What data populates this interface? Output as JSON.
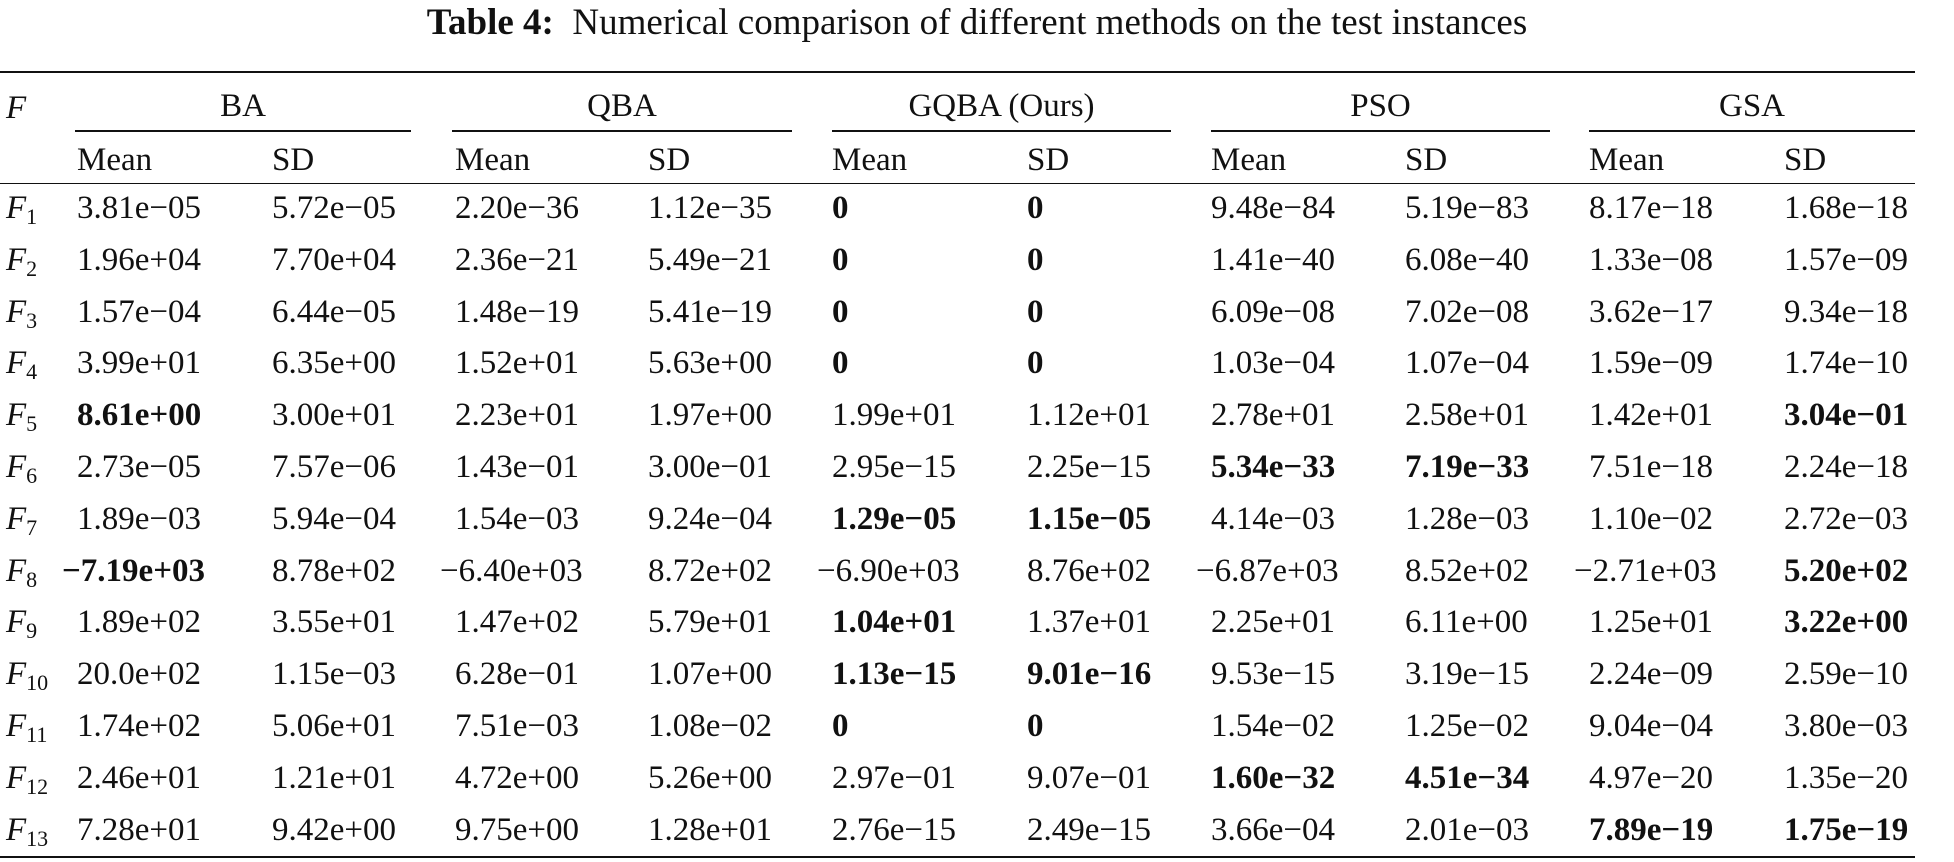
{
  "title": {
    "label": "Table 4:",
    "text": "Numerical comparison of different methods on the test instances"
  },
  "table": {
    "corner": "F",
    "groups": [
      "BA",
      "QBA",
      "GQBA (Ours)",
      "PSO",
      "GSA"
    ],
    "subheaders": [
      "Mean",
      "SD",
      "Mean",
      "SD",
      "Mean",
      "SD",
      "Mean",
      "SD",
      "Mean",
      "SD"
    ],
    "rows": [
      {
        "name": "F",
        "index": "1",
        "cells": [
          "3.81e−05",
          "5.72e−05",
          "2.20e−36",
          "1.12e−35",
          "0",
          "0",
          "9.48e−84",
          "5.19e−83",
          "8.17e−18",
          "1.68e−18"
        ]
      },
      {
        "name": "F",
        "index": "2",
        "cells": [
          "1.96e+04",
          "7.70e+04",
          "2.36e−21",
          "5.49e−21",
          "0",
          "0",
          "1.41e−40",
          "6.08e−40",
          "1.33e−08",
          "1.57e−09"
        ]
      },
      {
        "name": "F",
        "index": "3",
        "cells": [
          "1.57e−04",
          "6.44e−05",
          "1.48e−19",
          "5.41e−19",
          "0",
          "0",
          "6.09e−08",
          "7.02e−08",
          "3.62e−17",
          "9.34e−18"
        ]
      },
      {
        "name": "F",
        "index": "4",
        "cells": [
          "3.99e+01",
          "6.35e+00",
          "1.52e+01",
          "5.63e+00",
          "0",
          "0",
          "1.03e−04",
          "1.07e−04",
          "1.59e−09",
          "1.74e−10"
        ]
      },
      {
        "name": "F",
        "index": "5",
        "cells": [
          "8.61e+00",
          "3.00e+01",
          "2.23e+01",
          "1.97e+00",
          "1.99e+01",
          "1.12e+01",
          "2.78e+01",
          "2.58e+01",
          "1.42e+01",
          "3.04e−01"
        ]
      },
      {
        "name": "F",
        "index": "6",
        "cells": [
          "2.73e−05",
          "7.57e−06",
          "1.43e−01",
          "3.00e−01",
          "2.95e−15",
          "2.25e−15",
          "5.34e−33",
          "7.19e−33",
          "7.51e−18",
          "2.24e−18"
        ]
      },
      {
        "name": "F",
        "index": "7",
        "cells": [
          "1.89e−03",
          "5.94e−04",
          "1.54e−03",
          "9.24e−04",
          "1.29e−05",
          "1.15e−05",
          "4.14e−03",
          "1.28e−03",
          "1.10e−02",
          "2.72e−03"
        ]
      },
      {
        "name": "F",
        "index": "8",
        "cells": [
          "−7.19e+03",
          "8.78e+02",
          "−6.40e+03",
          "8.72e+02",
          "−6.90e+03",
          "8.76e+02",
          "−6.87e+03",
          "8.52e+02",
          "−2.71e+03",
          "5.20e+02"
        ]
      },
      {
        "name": "F",
        "index": "9",
        "cells": [
          "1.89e+02",
          "3.55e+01",
          "1.47e+02",
          "5.79e+01",
          "1.04e+01",
          "1.37e+01",
          "2.25e+01",
          "6.11e+00",
          "1.25e+01",
          "3.22e+00"
        ]
      },
      {
        "name": "F",
        "index": "10",
        "cells": [
          "20.0e+02",
          "1.15e−03",
          "6.28e−01",
          "1.07e+00",
          "1.13e−15",
          "9.01e−16",
          "9.53e−15",
          "3.19e−15",
          "2.24e−09",
          "2.59e−10"
        ]
      },
      {
        "name": "F",
        "index": "11",
        "cells": [
          "1.74e+02",
          "5.06e+01",
          "7.51e−03",
          "1.08e−02",
          "0",
          "0",
          "1.54e−02",
          "1.25e−02",
          "9.04e−04",
          "3.80e−03"
        ]
      },
      {
        "name": "F",
        "index": "12",
        "cells": [
          "2.46e+01",
          "1.21e+01",
          "4.72e+00",
          "5.26e+00",
          "2.97e−01",
          "9.07e−01",
          "1.60e−32",
          "4.51e−34",
          "4.97e−20",
          "1.35e−20"
        ]
      },
      {
        "name": "F",
        "index": "13",
        "cells": [
          "7.28e+01",
          "9.42e+00",
          "9.75e+00",
          "1.28e+01",
          "2.76e−15",
          "2.49e−15",
          "3.66e−04",
          "2.01e−03",
          "7.89e−19",
          "1.75e−19"
        ]
      }
    ]
  }
}
